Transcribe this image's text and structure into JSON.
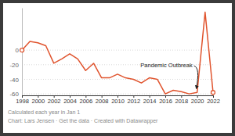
{
  "chart_data": {
    "type": "line",
    "x": [
      1998,
      1999,
      2000,
      2001,
      2002,
      2003,
      2004,
      2005,
      2006,
      2007,
      2008,
      2009,
      2010,
      2011,
      2012,
      2013,
      2014,
      2015,
      2016,
      2017,
      2018,
      2019,
      2020,
      2021,
      2022
    ],
    "values": [
      0,
      12,
      10,
      6,
      -18,
      -12,
      -5,
      -12,
      -28,
      -18,
      -38,
      -38,
      -33,
      -38,
      -40,
      -45,
      -38,
      -40,
      -60,
      -55,
      -57,
      -60,
      -58,
      52,
      -58
    ],
    "color": "#e0542e",
    "marker": "circle",
    "xlim": [
      1998,
      2022
    ],
    "xticks": [
      1998,
      2000,
      2002,
      2004,
      2006,
      2008,
      2010,
      2012,
      2014,
      2016,
      2018,
      2020,
      2022
    ],
    "ylim": [
      -62,
      58
    ],
    "yticks": [
      -60,
      -40,
      -20,
      0
    ],
    "grid": true,
    "annotation": "Pandemic Outbreak",
    "notes": "Calculated each year in Jan 1",
    "credit": "Chart: Lars Jensen · Get the data · Created with Datawrapper"
  }
}
